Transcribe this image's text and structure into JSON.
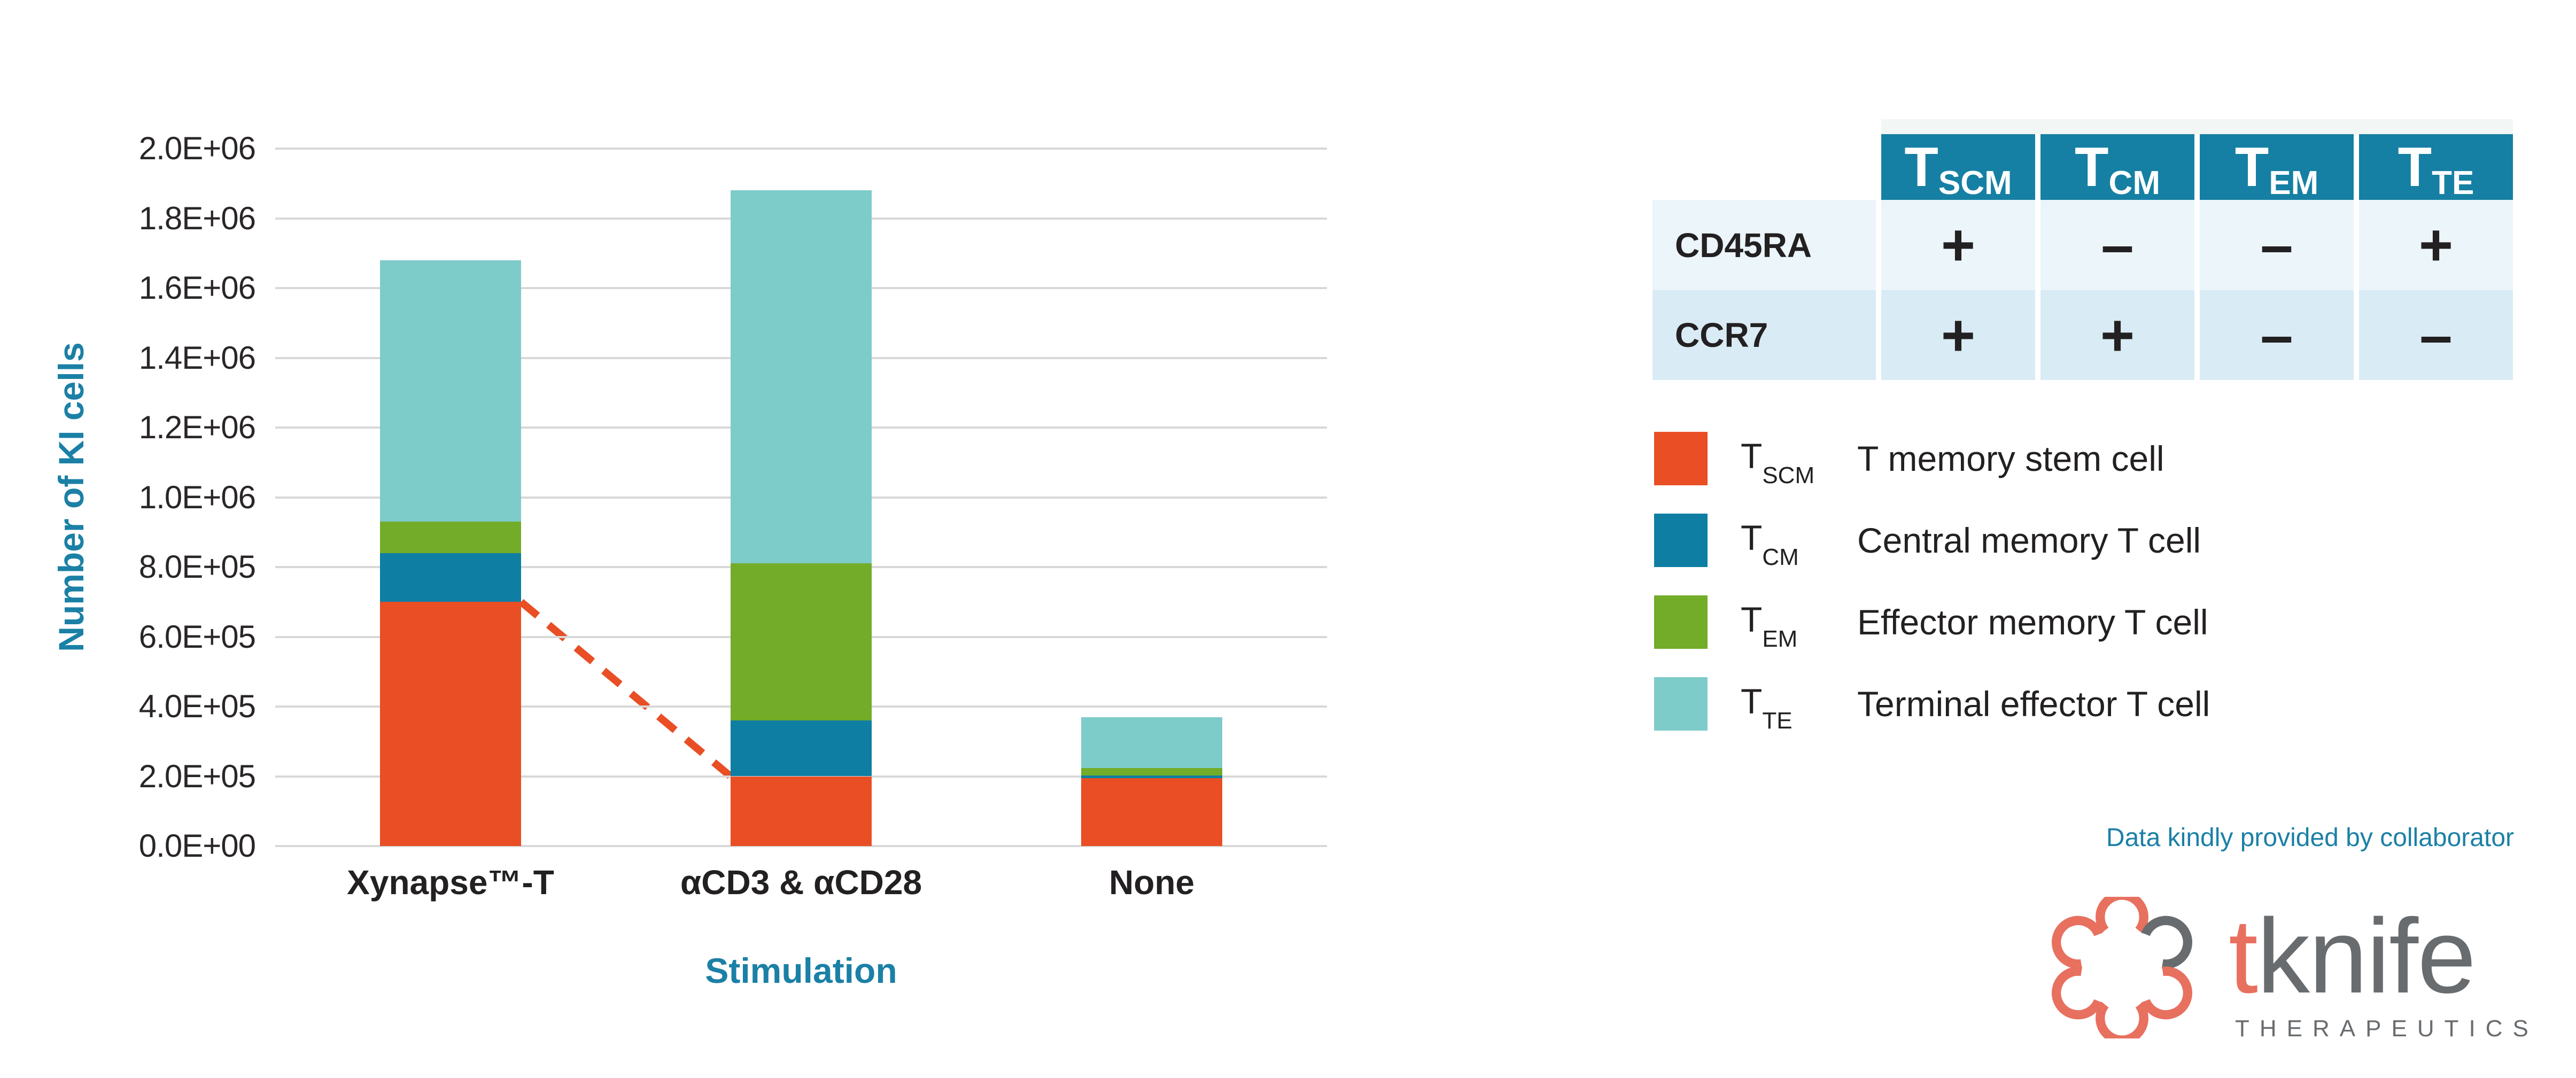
{
  "chart": {
    "y_axis": {
      "title": "Number of KI cells",
      "ticks": [
        "0.0E+00",
        "2.0E+05",
        "4.0E+05",
        "6.0E+05",
        "8.0E+05",
        "1.0E+06",
        "1.2E+06",
        "1.4E+06",
        "1.6E+06",
        "1.8E+06",
        "2.0E+06"
      ]
    },
    "x_axis": {
      "title": "Stimulation",
      "categories": [
        "Xynapse™-T",
        "αCD3 & αCD28",
        "None"
      ]
    }
  },
  "chart_data": {
    "type": "bar",
    "stacked": true,
    "title": "",
    "xlabel": "Stimulation",
    "ylabel": "Number of KI cells",
    "ylim": [
      0,
      2000000
    ],
    "grid": "horizontal",
    "categories": [
      "Xynapse™-T",
      "αCD3 & αCD28",
      "None"
    ],
    "series": [
      {
        "name": "TSCM",
        "label": "T memory stem cell",
        "color": "#e94e24",
        "values": [
          700000,
          200000,
          195000
        ]
      },
      {
        "name": "TCM",
        "label": "Central memory T cell",
        "color": "#0e7ea3",
        "values": [
          140000,
          160000,
          8000
        ]
      },
      {
        "name": "TEM",
        "label": "Effector memory T cell",
        "color": "#73ac29",
        "values": [
          90000,
          450000,
          20000
        ]
      },
      {
        "name": "TTE",
        "label": "Terminal effector T cell",
        "color": "#7dccc9",
        "values": [
          750000,
          1070000,
          147000
        ]
      }
    ],
    "totals": [
      1680000,
      1880000,
      370000
    ],
    "annotations": [
      {
        "type": "dashed-line",
        "color": "#e94e24",
        "from": "top of TSCM segment of Xynapse™-T (7.0E+05)",
        "to": "top of TSCM segment of αCD3 & αCD28 (2.0E+05)"
      }
    ],
    "legend_position": "right-panel"
  },
  "table": {
    "columns": [
      {
        "main": "T",
        "sub": "SCM"
      },
      {
        "main": "T",
        "sub": "CM"
      },
      {
        "main": "T",
        "sub": "EM"
      },
      {
        "main": "T",
        "sub": "TE"
      }
    ],
    "rows": [
      {
        "label": "CD45RA",
        "values": [
          "+",
          "–",
          "–",
          "+"
        ]
      },
      {
        "label": "CCR7",
        "values": [
          "+",
          "+",
          "–",
          "–"
        ]
      }
    ],
    "header_color": "#1580a3",
    "row_colors": [
      "#ebf5fa",
      "#d9ebf4"
    ]
  },
  "legend": {
    "items": [
      {
        "symbol_main": "T",
        "symbol_sub": "SCM",
        "color": "#e94e24",
        "label": "T memory stem cell"
      },
      {
        "symbol_main": "T",
        "symbol_sub": "CM",
        "color": "#0e7ea3",
        "label": "Central memory T cell"
      },
      {
        "symbol_main": "T",
        "symbol_sub": "EM",
        "color": "#73ac29",
        "label": "Effector memory T cell"
      },
      {
        "symbol_main": "T",
        "symbol_sub": "TE",
        "color": "#7dccc9",
        "label": "Terminal effector T cell"
      }
    ]
  },
  "footer": {
    "note": "Data kindly provided by collaborator",
    "note_color": "#1b80a6",
    "logo": {
      "word_t": "t",
      "word_rest": "knife",
      "subtitle": "THERAPEUTICS",
      "accent_color": "#e8705f",
      "gray_color": "#696c6f"
    }
  }
}
